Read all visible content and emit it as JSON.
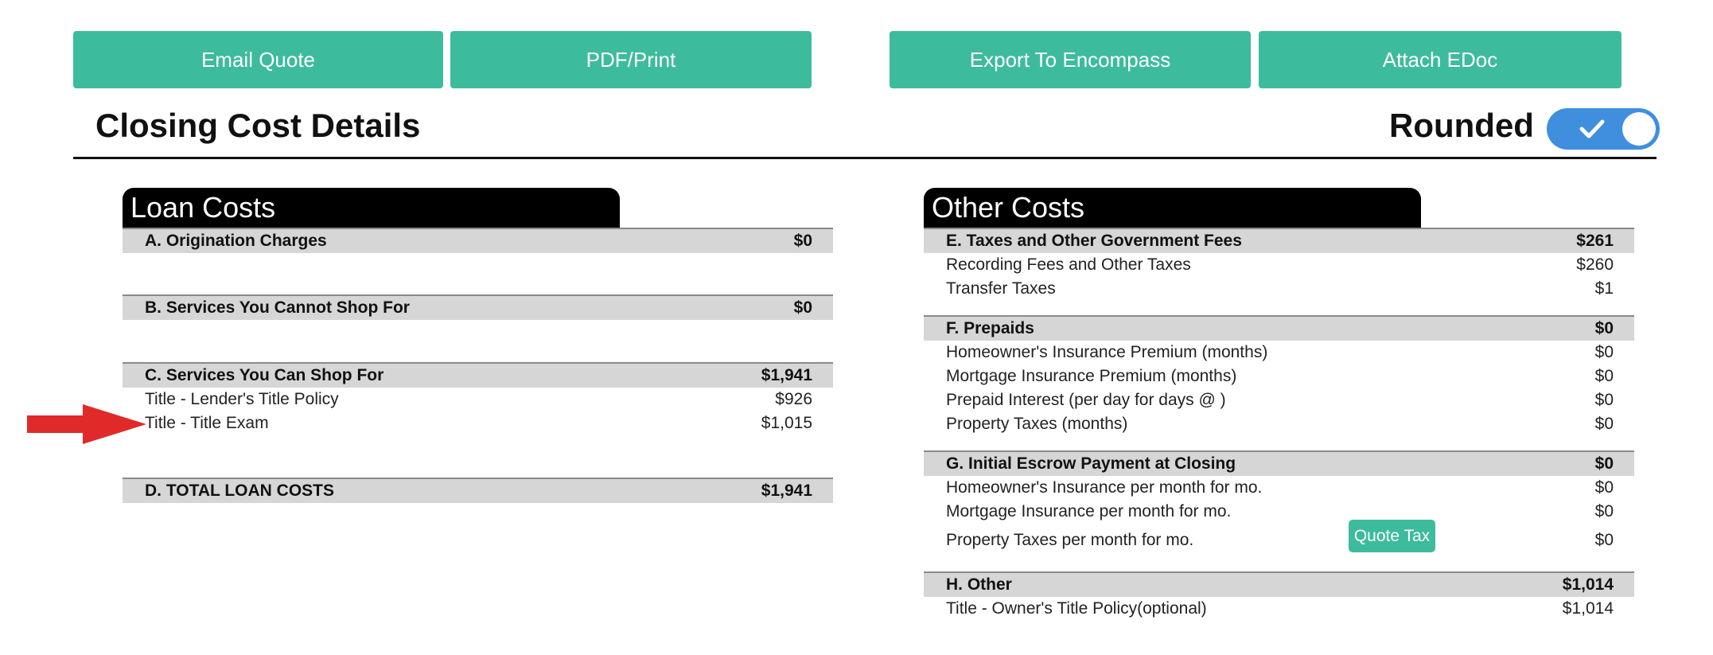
{
  "toolbar": {
    "email_label": "Email Quote",
    "pdf_label": "PDF/Print",
    "export_label": "Export To Encompass",
    "attach_label": "Attach EDoc"
  },
  "header": {
    "title": "Closing Cost Details",
    "rounded_label": "Rounded",
    "rounded_on": true
  },
  "loan_costs": {
    "title": "Loan Costs",
    "sections": [
      {
        "label": "A. Origination Charges",
        "amount": "$0",
        "items": []
      },
      {
        "label": "B. Services You Cannot Shop For",
        "amount": "$0",
        "items": []
      },
      {
        "label": "C. Services You Can Shop For",
        "amount": "$1,941",
        "items": [
          {
            "label": "Title - Lender's Title Policy",
            "amount": "$926"
          },
          {
            "label": "Title - Title Exam",
            "amount": "$1,015"
          }
        ]
      },
      {
        "label": "D. TOTAL LOAN COSTS",
        "amount": "$1,941",
        "items": []
      }
    ]
  },
  "other_costs": {
    "title": "Other Costs",
    "sections": [
      {
        "label": "E. Taxes and Other Government Fees",
        "amount": "$261",
        "items": [
          {
            "label": "Recording Fees and Other Taxes",
            "amount": "$260"
          },
          {
            "label": "Transfer Taxes",
            "amount": "$1"
          }
        ]
      },
      {
        "label": "F. Prepaids",
        "amount": "$0",
        "items": [
          {
            "label": "Homeowner's Insurance Premium (months)",
            "amount": "$0"
          },
          {
            "label": "Mortgage Insurance Premium (months)",
            "amount": "$0"
          },
          {
            "label": "Prepaid Interest (per day for days @ )",
            "amount": "$0"
          },
          {
            "label": "Property Taxes (months)",
            "amount": "$0"
          }
        ]
      },
      {
        "label": "G. Initial Escrow Payment at Closing",
        "amount": "$0",
        "items": [
          {
            "label": "Homeowner's Insurance per month for mo.",
            "amount": "$0"
          },
          {
            "label": "Mortgage Insurance per month for mo.",
            "amount": "$0"
          },
          {
            "label": "Property Taxes per month for mo.",
            "amount": "$0"
          }
        ]
      },
      {
        "label": "H. Other",
        "amount": "$1,014",
        "items": [
          {
            "label": "Title - Owner's Title Policy(optional)",
            "amount": "$1,014"
          }
        ]
      }
    ],
    "quote_tax_label": "Quote Tax"
  },
  "colors": {
    "accent_green": "#3dbb9d",
    "toggle_blue": "#3f8fde",
    "arrow_red": "#e02a2a",
    "header_gray": "#d6d6d6"
  },
  "icons": {
    "toggle_check": "check-icon",
    "annotation_arrow": "arrow-right-icon"
  }
}
